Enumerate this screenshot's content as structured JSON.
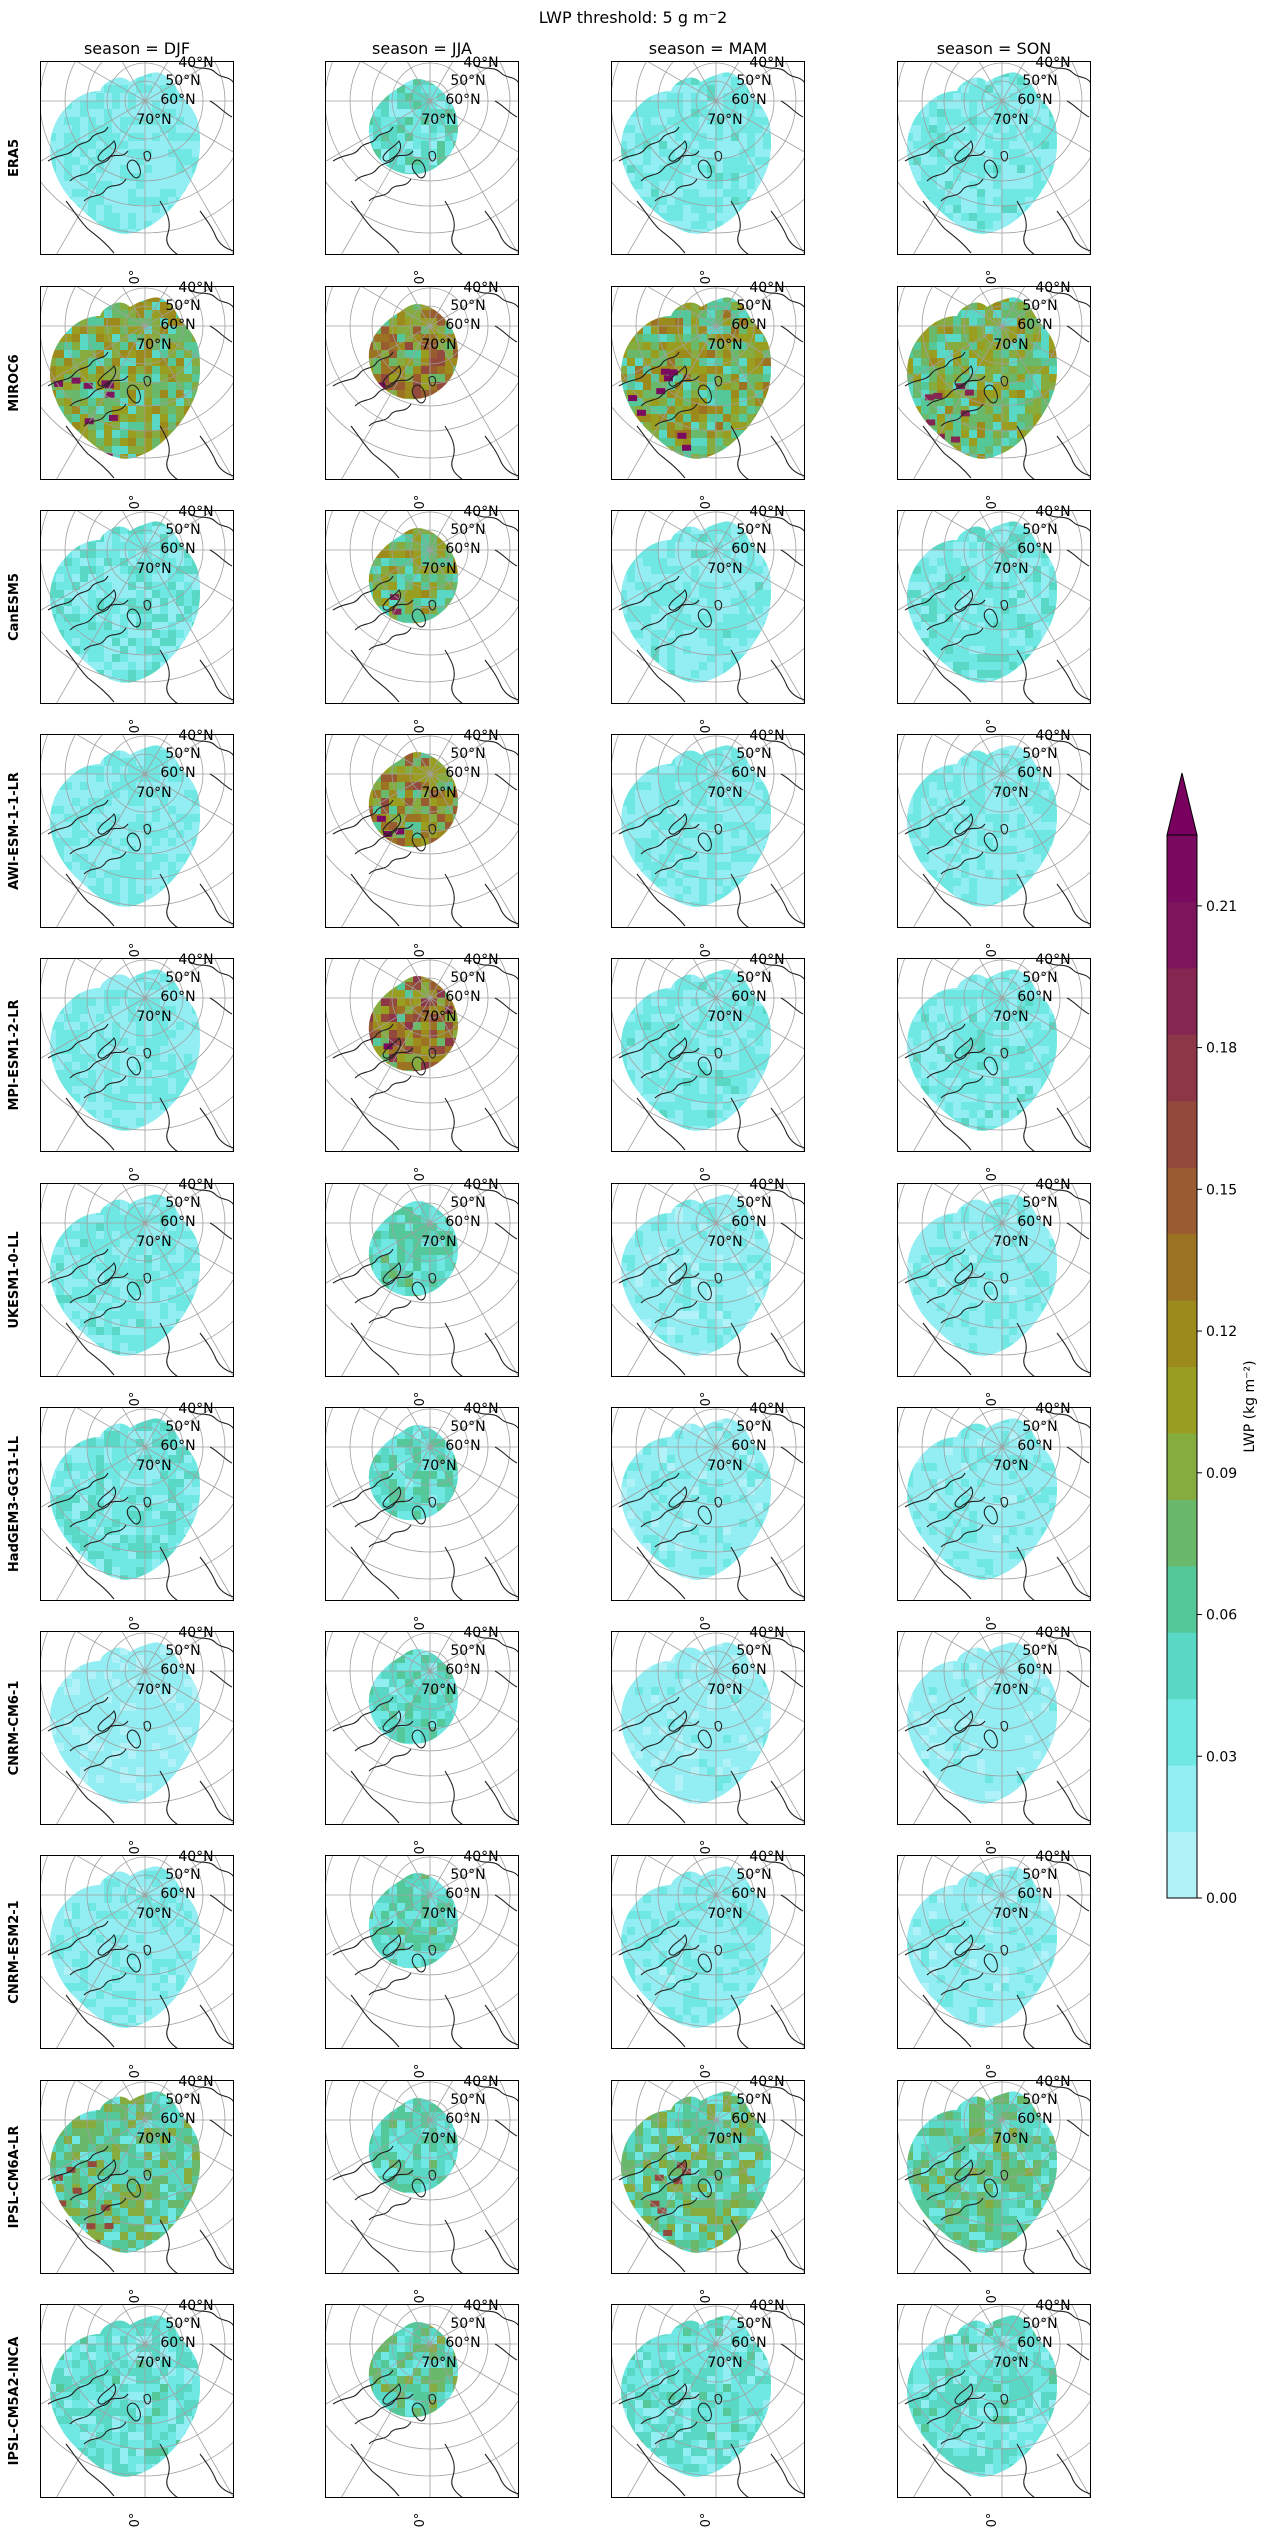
{
  "figure": {
    "title": "LWP threshold: 5 g m$^{-}$2",
    "title_display": "LWP threshold: 5 g m⁻2"
  },
  "chart_data": {
    "type": "heatmap",
    "projection": "north polar stereographic",
    "columns": [
      "season = DJF",
      "season = JJA",
      "season = MAM",
      "season = SON"
    ],
    "rows": [
      "ERA5",
      "MIROC6",
      "CanESM5",
      "AWI-ESM-1-1-LR",
      "MPI-ESM1-2-LR",
      "UKESM1-0-LL",
      "HadGEM3-GC31-LL",
      "CNRM-CM6-1",
      "CNRM-ESM2-1",
      "IPSL-CM6A-LR",
      "IPSL-CM5A2-INCA"
    ],
    "latitude_labels": [
      "40°N",
      "50°N",
      "60°N",
      "70°N"
    ],
    "longitude_label": "0°",
    "colorbar": {
      "label": "LWP (kg m⁻²)",
      "ticks": [
        "0.00",
        "0.03",
        "0.06",
        "0.09",
        "0.12",
        "0.15",
        "0.18",
        "0.21"
      ],
      "range": [
        0.0,
        0.225
      ],
      "extend": "max",
      "levels": 16,
      "colors": [
        "#b0f2f8",
        "#92eef2",
        "#6fe8e4",
        "#5ad8c6",
        "#55c89a",
        "#6ab86a",
        "#86ab3e",
        "#9a9e20",
        "#9d8a1c",
        "#9b7323",
        "#985c30",
        "#93493c",
        "#8c3648",
        "#842552",
        "#7d155c",
        "#7a0a60"
      ],
      "extend_color": "#7a0060"
    },
    "panel_mean_lwp": [
      [
        0.028,
        0.045,
        0.03,
        0.03
      ],
      [
        0.085,
        0.11,
        0.09,
        0.08
      ],
      [
        0.035,
        0.08,
        0.03,
        0.033
      ],
      [
        0.028,
        0.11,
        0.028,
        0.028
      ],
      [
        0.028,
        0.125,
        0.03,
        0.03
      ],
      [
        0.03,
        0.05,
        0.022,
        0.024
      ],
      [
        0.035,
        0.048,
        0.022,
        0.024
      ],
      [
        0.018,
        0.045,
        0.02,
        0.02
      ],
      [
        0.025,
        0.05,
        0.025,
        0.022
      ],
      [
        0.065,
        0.05,
        0.065,
        0.06
      ],
      [
        0.04,
        0.06,
        0.04,
        0.04
      ]
    ]
  }
}
